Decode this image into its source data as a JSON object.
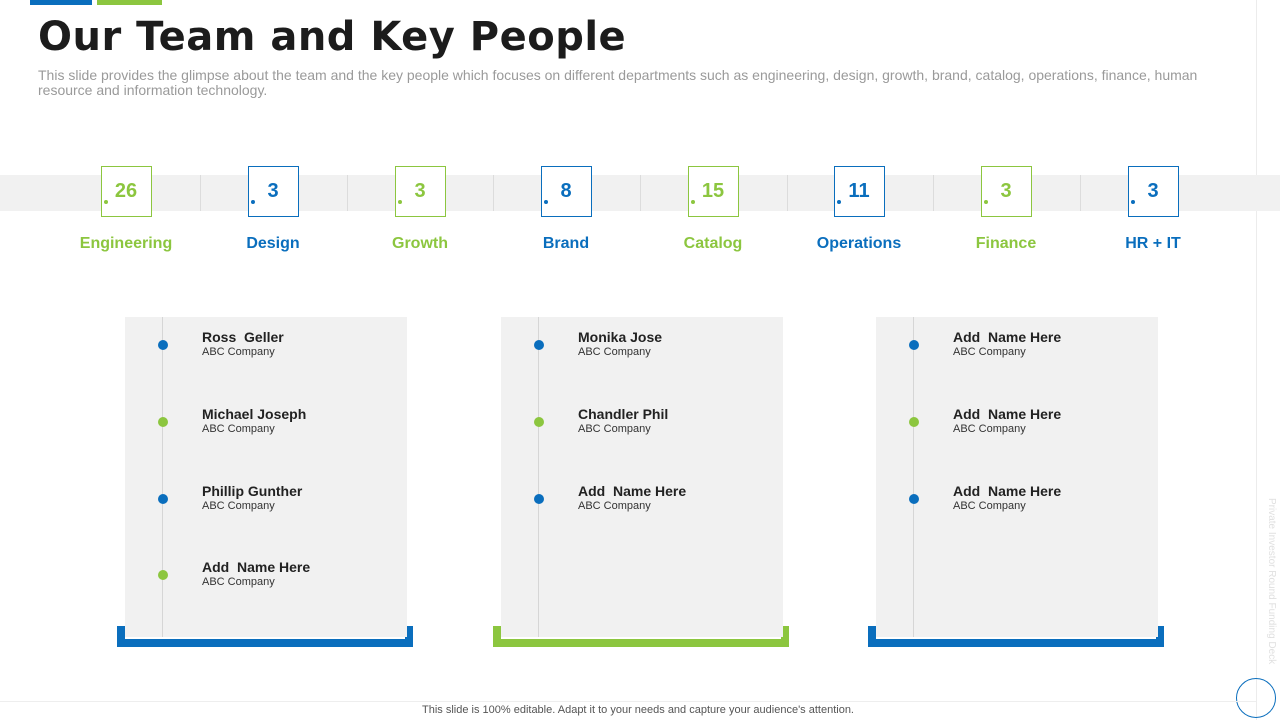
{
  "title": "Our Team and Key People",
  "subtitle": "This slide provides the glimpse about the team and the key people which focuses on different departments such as engineering, design, growth, brand, catalog, operations, finance, human resource and information technology.",
  "colors": {
    "blue": "#0a6ebd",
    "green": "#8cc63f"
  },
  "departments": [
    {
      "count": "26",
      "label": "Engineering",
      "color": "green"
    },
    {
      "count": "3",
      "label": "Design",
      "color": "blue"
    },
    {
      "count": "3",
      "label": "Growth",
      "color": "green"
    },
    {
      "count": "8",
      "label": "Brand",
      "color": "blue"
    },
    {
      "count": "15",
      "label": "Catalog",
      "color": "green"
    },
    {
      "count": "11",
      "label": "Operations",
      "color": "blue"
    },
    {
      "count": "3",
      "label": "Finance",
      "color": "green"
    },
    {
      "count": "3",
      "label": "HR + IT",
      "color": "blue"
    }
  ],
  "cards": [
    {
      "accent": "blue",
      "people": [
        {
          "name": "Ross  Geller",
          "company": "ABC Company",
          "dot": "blue"
        },
        {
          "name": "Michael Joseph",
          "company": "ABC Company",
          "dot": "green"
        },
        {
          "name": "Phillip Gunther",
          "company": "ABC Company",
          "dot": "blue"
        },
        {
          "name": "Add  Name Here",
          "company": "ABC Company",
          "dot": "green"
        }
      ]
    },
    {
      "accent": "green",
      "people": [
        {
          "name": "Monika Jose",
          "company": "ABC Company",
          "dot": "blue"
        },
        {
          "name": "Chandler Phil",
          "company": "ABC Company",
          "dot": "green"
        },
        {
          "name": "Add  Name Here",
          "company": "ABC Company",
          "dot": "blue"
        }
      ]
    },
    {
      "accent": "blue",
      "people": [
        {
          "name": "Add  Name Here",
          "company": "ABC Company",
          "dot": "blue"
        },
        {
          "name": "Add  Name Here",
          "company": "ABC Company",
          "dot": "green"
        },
        {
          "name": "Add  Name Here",
          "company": "ABC Company",
          "dot": "blue"
        }
      ]
    }
  ],
  "side_text": "Private Investor Round Funding Deck",
  "footer": "This slide is 100% editable. Adapt it to your needs and capture your audience's attention."
}
